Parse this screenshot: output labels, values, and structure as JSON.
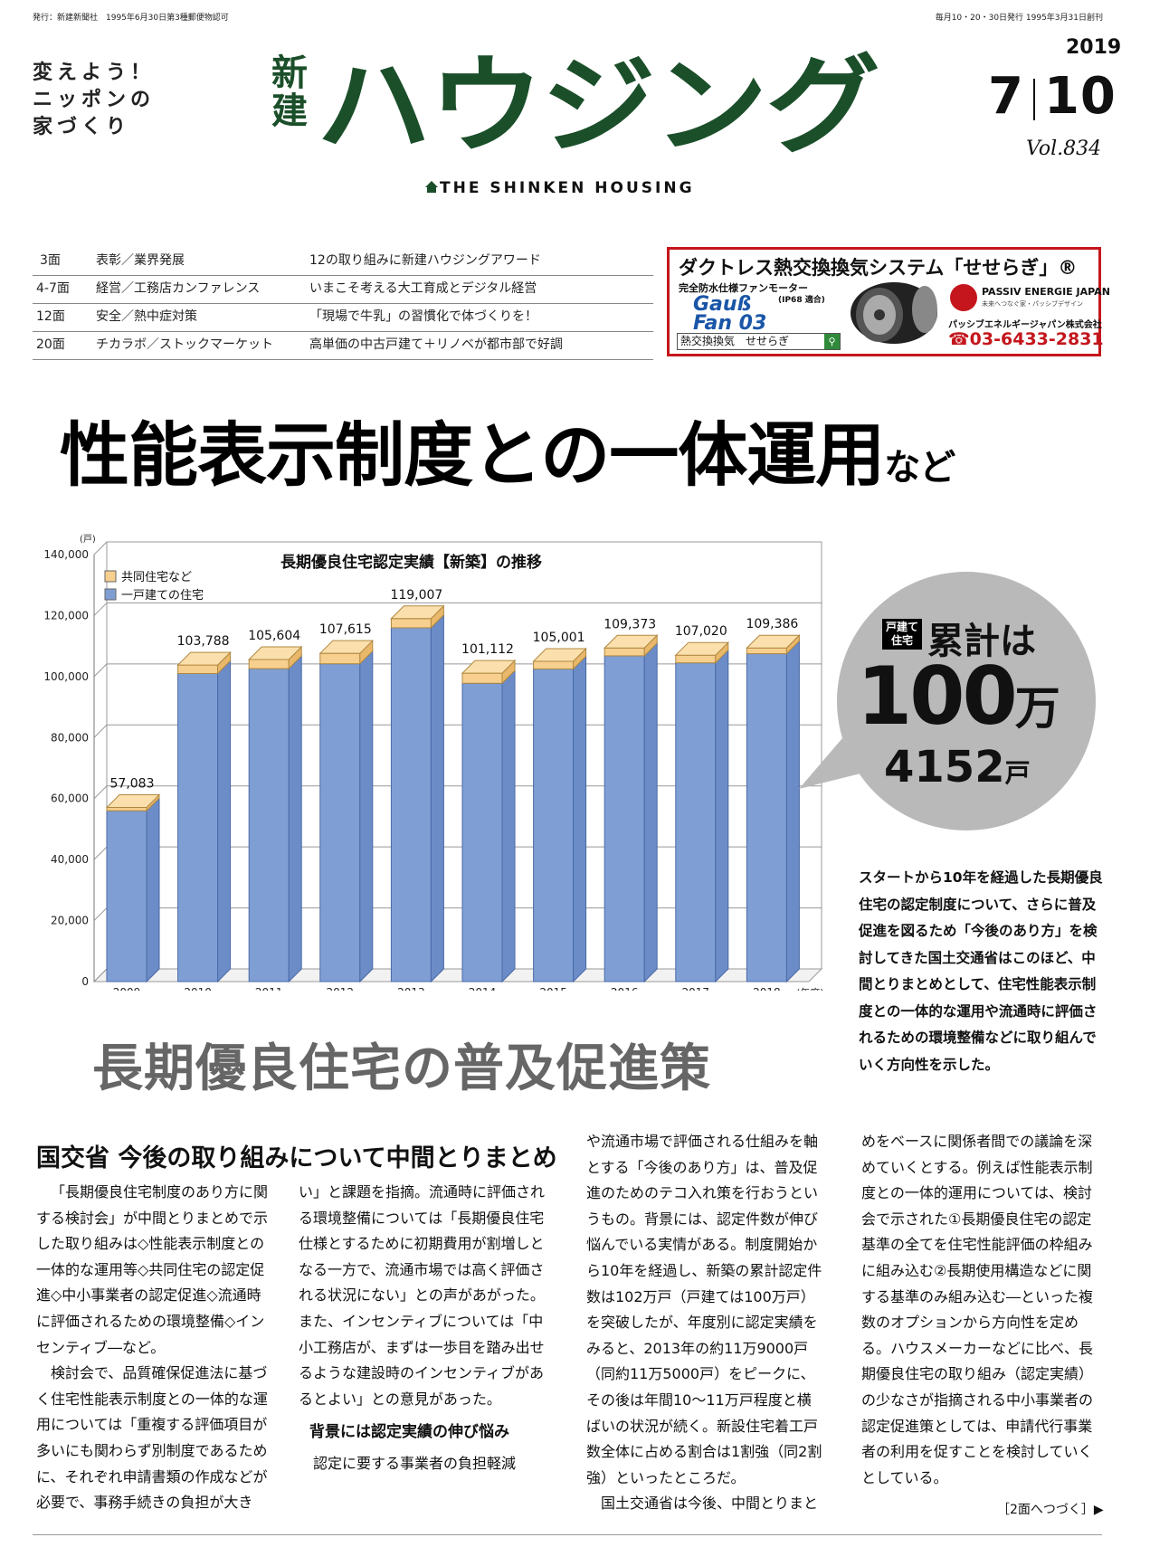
{
  "top_left": "発行：新建新聞社　1995年6月30日第3種郵便物認可",
  "top_right": "毎月10・20・30日発行 1995年3月31日創刊",
  "slogan": [
    "変えよう！",
    "ニッポンの",
    "家づくり"
  ],
  "masthead": {
    "small1": "新",
    "small2": "建",
    "big": "ハウジング",
    "sub": "THE SHINKEN HOUSING"
  },
  "issue": {
    "year": "2019",
    "month": "7",
    "day": "10",
    "vol": "Vol.834"
  },
  "toc": [
    {
      "page": "3面",
      "section": "表彰／業界発展",
      "title": "12の取り組みに新建ハウジングアワード"
    },
    {
      "page": "4-7面",
      "section": "経営／工務店カンファレンス",
      "title": "いまこそ考える大工育成とデジタル経営"
    },
    {
      "page": "12面",
      "section": "安全／熱中症対策",
      "title": "「現場で牛乳」の習慣化で体づくりを！"
    },
    {
      "page": "20面",
      "section": "チカラボ／ストックマーケット",
      "title": "高単価の中古戸建て＋リノベが都市部で好調"
    }
  ],
  "ad": {
    "title": "ダクトレス熱交換換気システム「せせらぎ」®",
    "line1": "完全防水仕様ファンモーター",
    "ip": "(IP68 適合)",
    "product": "Gauß Fan 03",
    "search": "熱交換換気　せせらぎ",
    "brand": "PASSIV ENERGIE JAPAN",
    "brand_sub": "未来へつなぐ家・パッシブデザイン",
    "company": "パッシブエネルギージャパン株式会社",
    "tel": "03-6433-2831"
  },
  "headline": {
    "main": "性能表示制度との一体運用",
    "tail": "など"
  },
  "chart_data": {
    "type": "bar",
    "title": "長期優良住宅認定実績【新築】の推移",
    "ylabel": "(戸)",
    "xlabel": "(年度)",
    "ylim": [
      0,
      140000
    ],
    "yticks": [
      "0",
      "20,000",
      "40,000",
      "60,000",
      "80,000",
      "100,000",
      "120,000",
      "140,000"
    ],
    "categories": [
      "2009",
      "2010",
      "2011",
      "2012",
      "2013",
      "2014",
      "2015",
      "2016",
      "2017",
      "2018"
    ],
    "totals": [
      "57,083",
      "103,788",
      "105,604",
      "107,615",
      "119,007",
      "101,112",
      "105,001",
      "109,373",
      "107,020",
      "109,386"
    ],
    "series": [
      {
        "name": "一戸建ての住宅",
        "color": "#7f9fd4",
        "values": [
          56000,
          101000,
          102600,
          104200,
          116000,
          97800,
          102500,
          106800,
          104500,
          107500
        ]
      },
      {
        "name": "共同住宅など",
        "color": "#f7cf8e",
        "values": [
          1083,
          2788,
          3004,
          3415,
          3007,
          3312,
          2501,
          2573,
          2520,
          1886
        ]
      }
    ],
    "legend": "top-left",
    "grid": true
  },
  "callout": {
    "tag1": "戸建て",
    "tag2": "住宅",
    "label": "累計は",
    "big": "100",
    "unit": "万",
    "num": "4152",
    "unit2": "戸"
  },
  "lead": "スタートから10年を経過した長期優良住宅の認定制度について、さらに普及促進を図るため「今後のあり方」を検討してきた国土交通省はこのほど、中間とりまとめとして、住宅性能表示制度との一体的な運用や流通時に評価されるための環境整備などに取り組んでいく方向性を示した。",
  "subhead": "長期優良住宅の普及促進策",
  "article": {
    "title": "国交省 今後の取り組みについて中間とりまとめ",
    "col1": [
      "「長期優良住宅制度のあり方に関する検討会」が中間とりまとめで示した取り組みは◇性能表示制度との一体的な運用等◇共同住宅の認定促進◇中小事業者の認定促進◇流通時に評価されるための環境整備◇インセンティブ―など。",
      "検討会で、品質確保促進法に基づく住宅性能表示制度との一体的な運用については「重複する評価項目が多いにも関わらず別制度であるために、それぞれ申請書類の作成などが必要で、事務手続きの負担が大き"
    ],
    "col2": [
      "い」と課題を指摘。流通時に評価される環境整備については「長期優良住宅仕様とするために初期費用が割増しとなる一方で、流通市場では高く評価される状況にない」との声があがった。また、インセンティブについては「中小工務店が、まずは一歩目を踏み出せるような建設時のインセンティブがあるとよい」との意見があった。"
    ],
    "col2_heading": "背景には認定実績の伸び悩み",
    "col2_after": "認定に要する事業者の負担軽減",
    "col3": [
      "や流通市場で評価される仕組みを軸とする「今後のあり方」は、普及促進のためのテコ入れ策を行おうというもの。背景には、認定件数が伸び悩んでいる実情がある。制度開始から10年を経過し、新築の累計認定件数は102万戸（戸建ては100万戸）を突破したが、年度別に認定実績をみると、2013年の約11万9000戸（同約11万5000戸）をピークに、その後は年間10～11万戸程度と横ばいの状況が続く。新設住宅着工戸数全体に占める割合は1割強（同2割強）といったところだ。",
      "国土交通省は今後、中間とりまと"
    ],
    "col4": [
      "めをベースに関係者間での議論を深めていくとする。例えば性能表示制度との一体的運用については、検討会で示された①長期優良住宅の認定基準の全てを住宅性能評価の枠組みに組み込む②長期使用構造などに関する基準のみ組み込む―といった複数のオプションから方向性を定める。ハウスメーカーなどに比べ、長期優良住宅の取り組み（認定実績）の少なさが指摘される中小事業者の認定促進策としては、申請代行事業者の利用を促すことを検討していくとしている。"
    ],
    "continued": "［2面へつづく］▶"
  }
}
